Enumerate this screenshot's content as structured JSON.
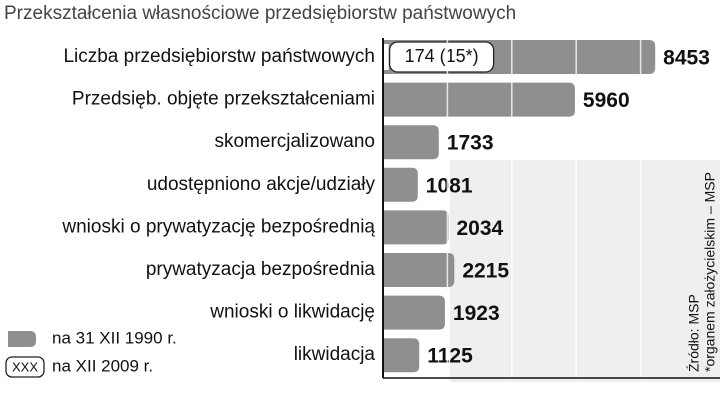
{
  "chart_data": {
    "type": "bar",
    "orientation": "horizontal",
    "title": "Przekształcenia własnościowe przedsiębiorstw państwowych",
    "categories": [
      "Liczba przedsiębiorstw państwowych",
      "Przedsięb. objęte przekształceniami",
      "skomercjalizowano",
      "udostępniono akcje/udziały",
      "wnioski o prywatyzację bezpośrednią",
      "prywatyzacja bezpośrednia",
      "wnioski o likwidację",
      "likwidacja"
    ],
    "series": [
      {
        "name": "na 31  XII 1990 r.",
        "color": "#8f8f8f",
        "values": [
          8453,
          5960,
          1733,
          1081,
          2034,
          2215,
          1923,
          1125
        ]
      },
      {
        "name": "na XII 2009 r.",
        "legend_label": "XXX",
        "color": "#ffffff",
        "values": [
          174,
          null,
          null,
          null,
          null,
          null,
          null,
          null
        ],
        "value_labels": [
          "174 (15*)",
          null,
          null,
          null,
          null,
          null,
          null,
          null
        ]
      }
    ],
    "xlim": [
      0,
      10000
    ],
    "xticks": [
      2000,
      4000,
      6000,
      8000
    ],
    "grid": true,
    "source": "Źródło: MSP",
    "footnote": "*organem założycielskim – MSP"
  }
}
